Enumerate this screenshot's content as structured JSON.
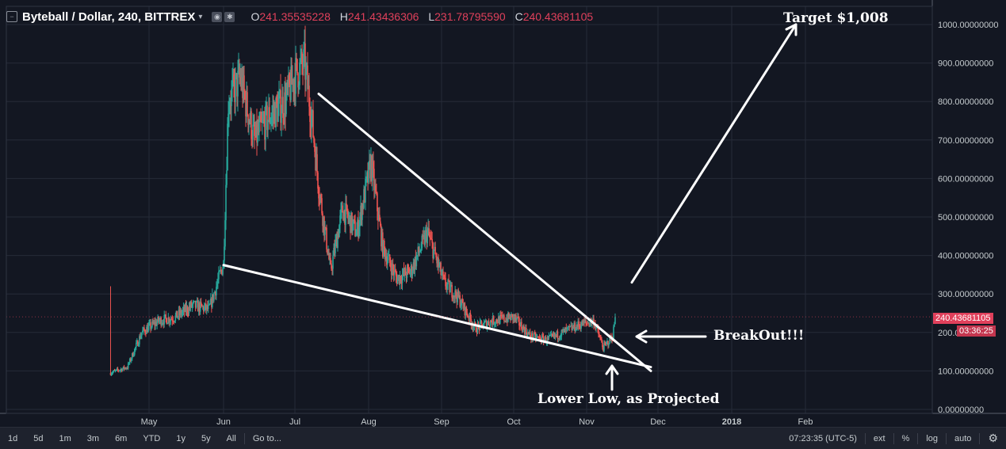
{
  "header": {
    "symbol": "Byteball / Dollar, 240, BITTREX",
    "ohlc": [
      {
        "key": "O",
        "value": "241.35535228"
      },
      {
        "key": "H",
        "value": "241.43436306"
      },
      {
        "key": "L",
        "value": "231.78795590"
      },
      {
        "key": "C",
        "value": "240.43681105"
      }
    ]
  },
  "annotations": {
    "target": "Target $1,008",
    "breakout": "BreakOut!!!",
    "lower_low": "Lower Low, as Projected"
  },
  "price_tag": {
    "price": "240.43681105",
    "countdown": "03:36:25"
  },
  "bottom_bar": {
    "ranges": [
      "1d",
      "5d",
      "1m",
      "3m",
      "6m",
      "YTD",
      "1y",
      "5y",
      "All"
    ],
    "goto": "Go to...",
    "time": "07:23:35 (UTC-5)",
    "options": [
      "ext",
      "%",
      "log",
      "auto"
    ]
  },
  "colors": {
    "up": "#26a69a",
    "down": "#ef5350",
    "bg": "#131722",
    "grid": "#262b38",
    "tag": "#e0405b"
  },
  "chart_data": {
    "type": "candlestick",
    "ylim": [
      0,
      1000
    ],
    "y_ticks": [
      "0.00000000",
      "100.00000000",
      "200.00000000",
      "300.00000000",
      "400.00000000",
      "500.00000000",
      "600.00000000",
      "700.00000000",
      "800.00000000",
      "900.00000000",
      "1000.00000000"
    ],
    "x_ticks": [
      "May",
      "Jun",
      "Jul",
      "Aug",
      "Sep",
      "Oct",
      "Nov",
      "Dec",
      "2018",
      "Feb"
    ],
    "series_approx": [
      {
        "date": "2017-04-15",
        "close": 95
      },
      {
        "date": "2017-04-22",
        "close": 110
      },
      {
        "date": "2017-04-28",
        "close": 200
      },
      {
        "date": "2017-05-05",
        "close": 230
      },
      {
        "date": "2017-05-12",
        "close": 240
      },
      {
        "date": "2017-05-19",
        "close": 270
      },
      {
        "date": "2017-05-26",
        "close": 260
      },
      {
        "date": "2017-06-01",
        "close": 380
      },
      {
        "date": "2017-06-03",
        "close": 800
      },
      {
        "date": "2017-06-08",
        "close": 860
      },
      {
        "date": "2017-06-14",
        "close": 700
      },
      {
        "date": "2017-06-20",
        "close": 760
      },
      {
        "date": "2017-06-27",
        "close": 800
      },
      {
        "date": "2017-07-01",
        "close": 870
      },
      {
        "date": "2017-07-05",
        "close": 900
      },
      {
        "date": "2017-07-08",
        "close": 760
      },
      {
        "date": "2017-07-11",
        "close": 580
      },
      {
        "date": "2017-07-16",
        "close": 360
      },
      {
        "date": "2017-07-21",
        "close": 520
      },
      {
        "date": "2017-07-27",
        "close": 460
      },
      {
        "date": "2017-08-02",
        "close": 640
      },
      {
        "date": "2017-08-07",
        "close": 420
      },
      {
        "date": "2017-08-13",
        "close": 340
      },
      {
        "date": "2017-08-19",
        "close": 360
      },
      {
        "date": "2017-08-26",
        "close": 460
      },
      {
        "date": "2017-09-02",
        "close": 330
      },
      {
        "date": "2017-09-08",
        "close": 290
      },
      {
        "date": "2017-09-15",
        "close": 210
      },
      {
        "date": "2017-09-22",
        "close": 230
      },
      {
        "date": "2017-10-01",
        "close": 240
      },
      {
        "date": "2017-10-08",
        "close": 190
      },
      {
        "date": "2017-10-15",
        "close": 180
      },
      {
        "date": "2017-10-22",
        "close": 200
      },
      {
        "date": "2017-10-29",
        "close": 220
      },
      {
        "date": "2017-11-04",
        "close": 230
      },
      {
        "date": "2017-11-08",
        "close": 160
      },
      {
        "date": "2017-11-12",
        "close": 190
      },
      {
        "date": "2017-11-13",
        "close": 240
      }
    ],
    "trendlines": [
      {
        "name": "upper",
        "from": {
          "date": "2017-07-11",
          "price": 820
        },
        "to": {
          "date": "2017-11-28",
          "price": 100
        }
      },
      {
        "name": "lower",
        "from": {
          "date": "2017-06-01",
          "price": 375
        },
        "to": {
          "date": "2017-11-28",
          "price": 110
        }
      },
      {
        "name": "target-arrow",
        "from": {
          "date": "2017-11-20",
          "price": 330
        },
        "to": {
          "date": "2018-01-28",
          "price": 1000
        }
      }
    ]
  }
}
